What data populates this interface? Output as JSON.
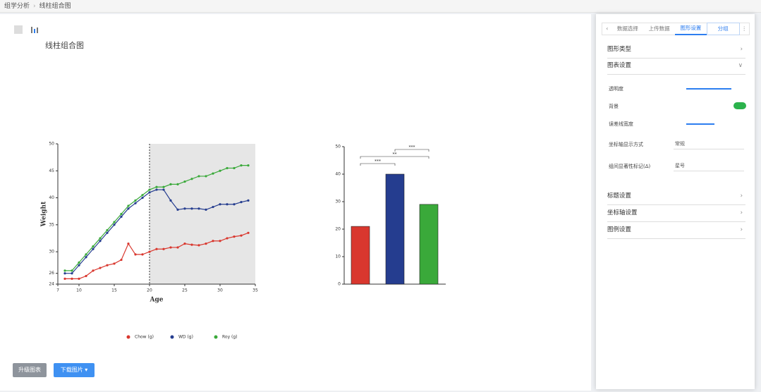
{
  "breadcrumb": [
    "组学分析",
    "线柱组合图"
  ],
  "page_title": "线柱组合图",
  "buttons": [
    "升级图表",
    "下载图片 ▾"
  ],
  "panel": {
    "tabs": [
      "数据选择",
      "上传数据",
      "图形设置",
      "分组"
    ],
    "sections": [
      "图形类型",
      "图表设置",
      "标题设置",
      "坐标轴设置",
      "图例设置"
    ],
    "settings": [
      "透明度",
      "背景",
      "误差线宽度",
      "坐标轴显示方式",
      "组间显著性标记(Δ)"
    ],
    "selects": [
      "常规",
      "星号"
    ]
  },
  "chart_data": [
    {
      "type": "line",
      "xlabel": "Age",
      "ylabel": "Weight",
      "x": [
        8,
        9,
        10,
        11,
        12,
        13,
        14,
        15,
        16,
        17,
        18,
        19,
        20,
        21,
        22,
        23,
        24,
        25,
        26,
        27,
        28,
        29,
        30,
        31,
        32,
        33,
        34
      ],
      "xlim": [
        7,
        35
      ],
      "xticks": [
        7,
        10,
        15,
        20,
        25,
        30,
        35
      ],
      "ylim": [
        24,
        50
      ],
      "yticks": [
        24,
        26,
        30,
        35,
        40,
        45,
        50
      ],
      "vline": 20,
      "shade_x": [
        20,
        35
      ],
      "series": [
        {
          "name": "Chow (g)",
          "color": "#d9372e",
          "values": [
            25,
            25,
            25,
            25.5,
            26.5,
            27,
            27.5,
            27.8,
            28.5,
            31.5,
            29.5,
            29.5,
            30,
            30.5,
            30.5,
            30.8,
            30.8,
            31.5,
            31.3,
            31.2,
            31.5,
            32,
            32,
            32.5,
            32.8,
            33,
            33.5
          ]
        },
        {
          "name": "WD (g)",
          "color": "#253d8f",
          "values": [
            26,
            26,
            27.5,
            29,
            30.5,
            32,
            33.5,
            35,
            36.5,
            38,
            39,
            40,
            41,
            41.5,
            41.5,
            39.5,
            37.8,
            38,
            38,
            38,
            37.8,
            38.3,
            38.8,
            38.8,
            38.8,
            39.2,
            39.5
          ]
        },
        {
          "name": "Roy (g)",
          "color": "#3aa93a",
          "values": [
            26.5,
            26.5,
            28,
            29.5,
            31,
            32.5,
            34,
            35.5,
            37,
            38.5,
            39.5,
            40.5,
            41.5,
            42,
            42,
            42.5,
            42.5,
            43,
            43.5,
            44,
            44,
            44.5,
            45,
            45.5,
            45.5,
            46,
            46
          ]
        }
      ]
    },
    {
      "type": "bar",
      "categories": [
        null,
        null,
        null
      ],
      "values": [
        21,
        40,
        29
      ],
      "colors": [
        "#d9372e",
        "#253d8f",
        "#3aa93a"
      ],
      "ylim": [
        0,
        50
      ],
      "yticks": [
        0,
        10,
        20,
        30,
        40,
        50
      ],
      "annotations": [
        {
          "text": "***",
          "pair": [
            0,
            1
          ]
        },
        {
          "text": "**",
          "pair": [
            0,
            2
          ]
        },
        {
          "text": "***",
          "pair": [
            1,
            2
          ]
        }
      ]
    }
  ]
}
